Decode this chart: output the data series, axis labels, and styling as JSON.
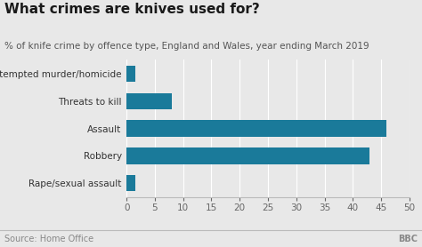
{
  "title": "What crimes are knives used for?",
  "subtitle": "% of knife crime by offence type, England and Wales, year ending March 2019",
  "categories": [
    "Rape/sexual assault",
    "Robbery",
    "Assault",
    "Threats to kill",
    "Attempted murder/homicide"
  ],
  "values": [
    1.5,
    43,
    46,
    8,
    1.5
  ],
  "bar_color": "#1a7a9a",
  "background_color": "#e8e8e8",
  "plot_bg_color": "#e8e8e8",
  "xlim": [
    0,
    50
  ],
  "xticks": [
    0,
    5,
    10,
    15,
    20,
    25,
    30,
    35,
    40,
    45,
    50
  ],
  "source_text": "Source: Home Office",
  "bbc_text": "BBC",
  "title_fontsize": 11,
  "subtitle_fontsize": 7.5,
  "tick_fontsize": 7.5,
  "label_fontsize": 7.5,
  "source_fontsize": 7
}
